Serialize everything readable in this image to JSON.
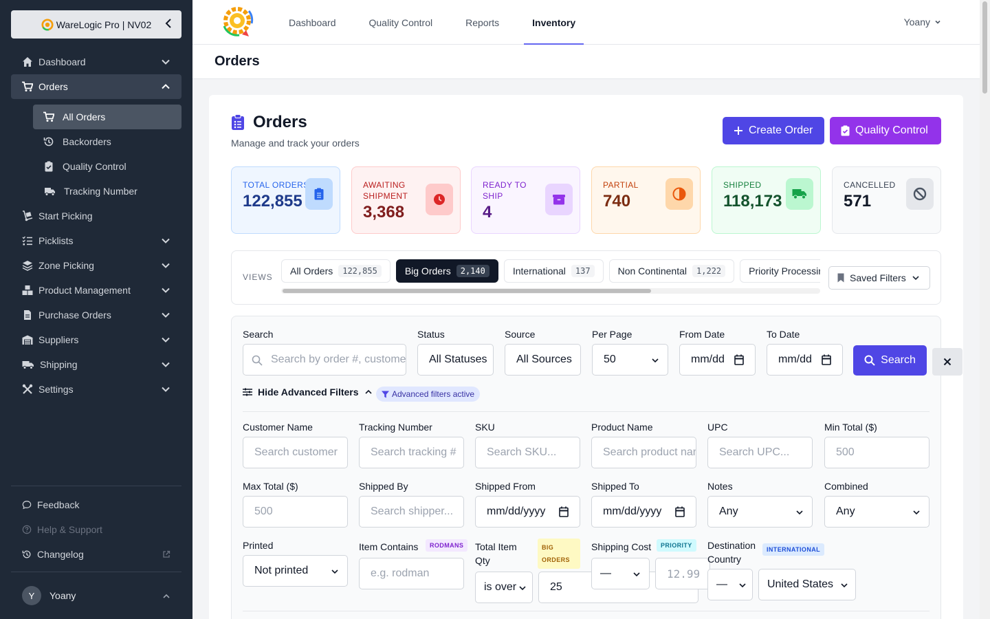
{
  "sidebar": {
    "brand": "WareLogic Pro | NV02",
    "items": [
      {
        "label": "Dashboard",
        "icon": "home-icon"
      },
      {
        "label": "Orders",
        "icon": "cart-icon"
      },
      {
        "label": "Start Picking",
        "icon": "dolly-icon"
      },
      {
        "label": "Picklists",
        "icon": "list-check-icon"
      },
      {
        "label": "Zone Picking",
        "icon": "layers-icon"
      },
      {
        "label": "Product Management",
        "icon": "boxes-icon"
      },
      {
        "label": "Purchase Orders",
        "icon": "file-icon"
      },
      {
        "label": "Suppliers",
        "icon": "warehouse-icon"
      },
      {
        "label": "Shipping",
        "icon": "truck-icon"
      },
      {
        "label": "Settings",
        "icon": "tools-icon"
      }
    ],
    "orders_sub": [
      {
        "label": "All Orders",
        "icon": "cart-icon"
      },
      {
        "label": "Backorders",
        "icon": "history-icon"
      },
      {
        "label": "Quality Control",
        "icon": "clipboard-check-icon"
      },
      {
        "label": "Tracking Number",
        "icon": "truck-fast-icon"
      }
    ],
    "bottom": [
      {
        "label": "Feedback"
      },
      {
        "label": "Help & Support"
      },
      {
        "label": "Changelog"
      }
    ],
    "user": {
      "initial": "Y",
      "name": "Yoany"
    }
  },
  "topnav": {
    "tabs": [
      "Dashboard",
      "Quality Control",
      "Reports",
      "Inventory"
    ],
    "active": "Inventory",
    "user": "Yoany"
  },
  "page": {
    "header": "Orders"
  },
  "card": {
    "title": "Orders",
    "subtitle": "Manage and track your orders",
    "create_btn": "Create Order",
    "qc_btn": "Quality Control"
  },
  "stats": [
    {
      "label": "Total Orders",
      "value": "122,855",
      "bg": "#eff6ff",
      "border": "#bfdbfe",
      "fg": "#1e3a8a",
      "lblc": "#2563eb",
      "icbg": "#bfdbfe",
      "icfg": "#2563eb"
    },
    {
      "label": "Awaiting Shipment",
      "value": "3,368",
      "bg": "#fef2f2",
      "border": "#fecaca",
      "fg": "#7f1d1d",
      "lblc": "#b91c1c",
      "icbg": "#fecaca",
      "icfg": "#dc2626"
    },
    {
      "label": "Ready to Ship",
      "value": "4",
      "bg": "#faf5ff",
      "border": "#e9d5ff",
      "fg": "#581c87",
      "lblc": "#7e22ce",
      "icbg": "#e9d5ff",
      "icfg": "#9333ea"
    },
    {
      "label": "Partial",
      "value": "740",
      "bg": "#fff7ed",
      "border": "#fed7aa",
      "fg": "#7c2d12",
      "lblc": "#c2410c",
      "icbg": "#fed7aa",
      "icfg": "#ea580c"
    },
    {
      "label": "Shipped",
      "value": "118,173",
      "bg": "#f0fdf4",
      "border": "#bbf7d0",
      "fg": "#14532d",
      "lblc": "#15803d",
      "icbg": "#bbf7d0",
      "icfg": "#16a34a"
    },
    {
      "label": "Cancelled",
      "value": "571",
      "bg": "#f9fafb",
      "border": "#e5e7eb",
      "fg": "#111827",
      "lblc": "#374151",
      "icbg": "#e5e7eb",
      "icfg": "#4b5563"
    }
  ],
  "views": {
    "label": "VIEWS",
    "tabs": [
      {
        "label": "All Orders",
        "count": "122,855"
      },
      {
        "label": "Big Orders",
        "count": "2,140"
      },
      {
        "label": "International",
        "count": "137"
      },
      {
        "label": "Non Continental",
        "count": "1,222"
      },
      {
        "label": "Priority Processing",
        "count": ""
      }
    ],
    "saved_filters": "Saved Filters"
  },
  "filters": {
    "search_label": "Search",
    "search_placeholder": "Search by order #, customer",
    "status_label": "Status",
    "status_value": "All Statuses",
    "source_label": "Source",
    "source_value": "All Sources",
    "perpage_label": "Per Page",
    "perpage_value": "50",
    "from_label": "From Date",
    "from_value": "mm/dd",
    "to_label": "To Date",
    "to_value": "mm/dd",
    "search_btn": "Search",
    "adv_toggle": "Hide Advanced Filters",
    "adv_badge": "Advanced filters active",
    "customer_label": "Customer Name",
    "customer_ph": "Search customer",
    "tracking_label": "Tracking Number",
    "tracking_ph": "Search tracking #",
    "sku_label": "SKU",
    "sku_ph": "Search SKU...",
    "product_label": "Product Name",
    "product_ph": "Search product name",
    "upc_label": "UPC",
    "upc_ph": "Search UPC...",
    "mintotal_label": "Min Total ($)",
    "mintotal_ph": "500",
    "maxtotal_label": "Max Total ($)",
    "maxtotal_ph": "500",
    "shippedby_label": "Shipped By",
    "shippedby_ph": "Search shipper...",
    "shippedfrom_label": "Shipped From",
    "shippedfrom_value": "mm/dd/yyyy",
    "shippedto_label": "Shipped To",
    "shippedto_value": "mm/dd/yyyy",
    "notes_label": "Notes",
    "notes_value": "Any",
    "combined_label": "Combined",
    "combined_value": "Any",
    "printed_label": "Printed",
    "printed_value": "Not printed",
    "itemcontains_label": "Item Contains",
    "itemcontains_tag": "RODMANS",
    "itemcontains_ph": "e.g. rodman",
    "qty_label": "Total Item Qty",
    "qty_tag": "BIG ORDERS",
    "qty_op": "is over",
    "qty_value": "25",
    "shipcost_label": "Shipping Cost",
    "shipcost_tag": "PRIORITY",
    "shipcost_op": "—",
    "shipcost_ph": "12.99",
    "dest_label": "Destination Country",
    "dest_tag": "INTERNATIONAL",
    "dest_op": "—",
    "dest_value": "United States"
  }
}
